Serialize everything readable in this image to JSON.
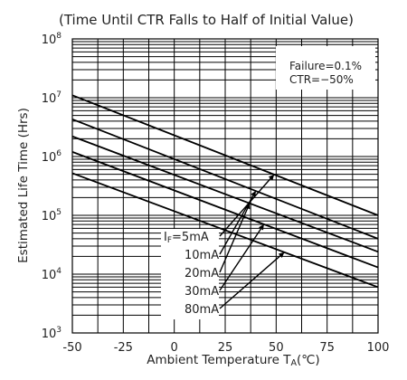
{
  "chart_data": {
    "type": "line",
    "title": "(Time Until CTR Falls to Half of Initial Value)",
    "xlabel": "Ambient Temperature T",
    "xlabel_sub": "A",
    "xlabel_unit": "(℃)",
    "ylabel": "Estimated Life Time (Hrs)",
    "xlim": [
      -50,
      100
    ],
    "ylim": [
      1000,
      100000000
    ],
    "y_scale": "log",
    "x_ticks": [
      "-50",
      "-25",
      "0",
      "25",
      "50",
      "75",
      "100"
    ],
    "y_ticks": [
      {
        "base": "10",
        "exp": "3"
      },
      {
        "base": "10",
        "exp": "4"
      },
      {
        "base": "10",
        "exp": "5"
      },
      {
        "base": "10",
        "exp": "6"
      },
      {
        "base": "10",
        "exp": "7"
      },
      {
        "base": "10",
        "exp": "8"
      }
    ],
    "grid": true,
    "annotations": [
      "Failure=0.1%",
      "CTR=−50%"
    ],
    "series_label_prefix": "I",
    "series_label_sub": "F",
    "series": [
      {
        "name": "5mA",
        "x": [
          -50,
          100
        ],
        "y": [
          11000000,
          100000
        ]
      },
      {
        "name": "10mA",
        "x": [
          -50,
          100
        ],
        "y": [
          4300000,
          40000
        ]
      },
      {
        "name": "20mA",
        "x": [
          -50,
          100
        ],
        "y": [
          2200000,
          24000
        ]
      },
      {
        "name": "30mA",
        "x": [
          -50,
          100
        ],
        "y": [
          1200000,
          13000
        ]
      },
      {
        "name": "80mA",
        "x": [
          -50,
          100
        ],
        "y": [
          520000,
          6000
        ]
      }
    ]
  }
}
